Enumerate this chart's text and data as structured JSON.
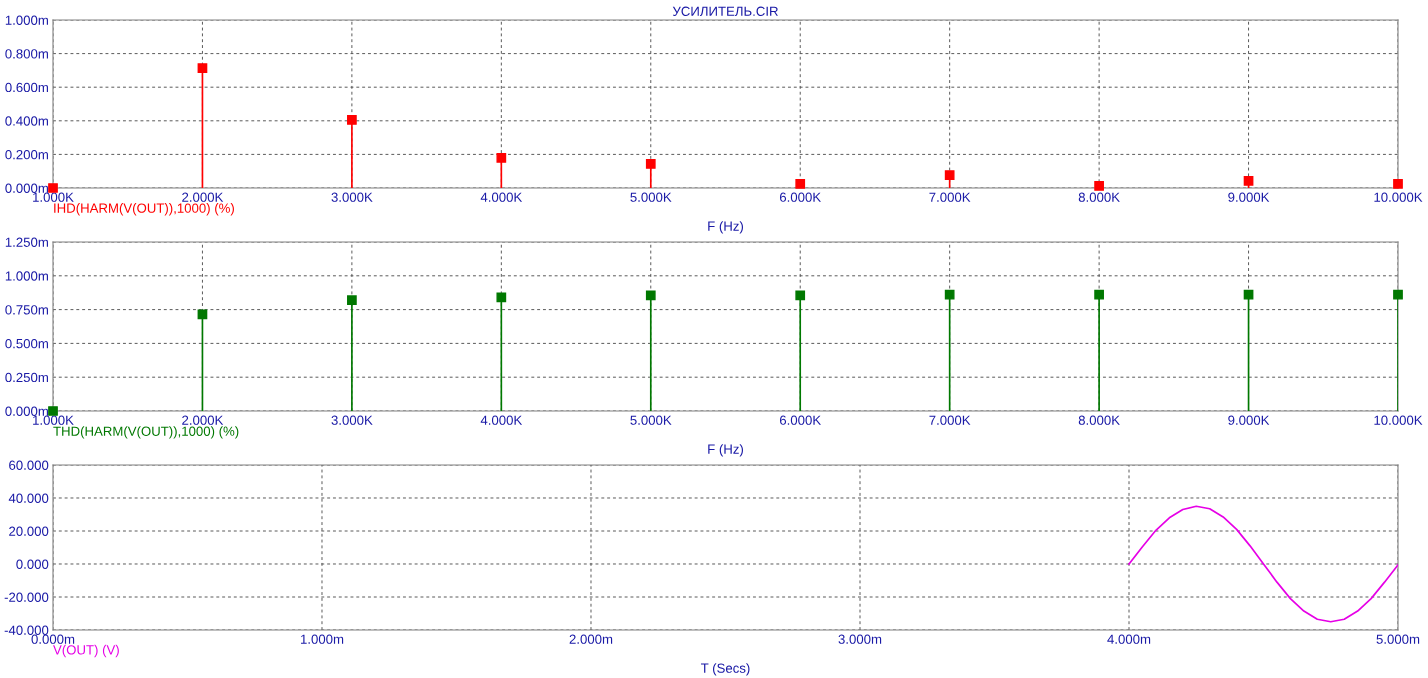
{
  "chart_data": [
    {
      "type": "lollipop",
      "title": "УСИЛИТЕЛЬ.CIR",
      "xlabel": "F (Hz)",
      "x": [
        1000,
        2000,
        3000,
        4000,
        5000,
        6000,
        7000,
        8000,
        9000,
        10000
      ],
      "series": [
        {
          "name": "IHD(HARM(V(OUT)),1000) (%)",
          "color": "#ff0000",
          "values": [
            0,
            0.714,
            0.405,
            0.179,
            0.143,
            0.024,
            0.077,
            0.012,
            0.042,
            0.024
          ]
        }
      ],
      "xlim": [
        1000,
        10000
      ],
      "xticks": [
        {
          "value": 1000,
          "label": "1.000K"
        },
        {
          "value": 2000,
          "label": "2.000K"
        },
        {
          "value": 3000,
          "label": "3.000K"
        },
        {
          "value": 4000,
          "label": "4.000K"
        },
        {
          "value": 5000,
          "label": "5.000K"
        },
        {
          "value": 6000,
          "label": "6.000K"
        },
        {
          "value": 7000,
          "label": "7.000K"
        },
        {
          "value": 8000,
          "label": "8.000K"
        },
        {
          "value": 9000,
          "label": "9.000K"
        },
        {
          "value": 10000,
          "label": "10.000K"
        }
      ],
      "ylim": [
        0,
        1
      ],
      "yticks": [
        {
          "value": 0,
          "label": "0.000m"
        },
        {
          "value": 0.2,
          "label": "0.200m"
        },
        {
          "value": 0.4,
          "label": "0.400m"
        },
        {
          "value": 0.6,
          "label": "0.600m"
        },
        {
          "value": 0.8,
          "label": "0.800m"
        },
        {
          "value": 1,
          "label": "1.000m"
        }
      ],
      "grid": true,
      "marker": "square",
      "legend": "bottom left"
    },
    {
      "type": "lollipop",
      "xlabel": "F (Hz)",
      "x": [
        1000,
        2000,
        3000,
        4000,
        5000,
        6000,
        7000,
        8000,
        9000,
        10000
      ],
      "series": [
        {
          "name": "THD(HARM(V(OUT)),1000) (%)",
          "color": "#007800",
          "values": [
            0,
            0.714,
            0.82,
            0.84,
            0.855,
            0.855,
            0.86,
            0.86,
            0.86,
            0.86
          ]
        }
      ],
      "xlim": [
        1000,
        10000
      ],
      "xticks": [
        {
          "value": 1000,
          "label": "1.000K"
        },
        {
          "value": 2000,
          "label": "2.000K"
        },
        {
          "value": 3000,
          "label": "3.000K"
        },
        {
          "value": 4000,
          "label": "4.000K"
        },
        {
          "value": 5000,
          "label": "5.000K"
        },
        {
          "value": 6000,
          "label": "6.000K"
        },
        {
          "value": 7000,
          "label": "7.000K"
        },
        {
          "value": 8000,
          "label": "8.000K"
        },
        {
          "value": 9000,
          "label": "9.000K"
        },
        {
          "value": 10000,
          "label": "10.000K"
        }
      ],
      "ylim": [
        0,
        1.25
      ],
      "yticks": [
        {
          "value": 0,
          "label": "0.000m"
        },
        {
          "value": 0.25,
          "label": "0.250m"
        },
        {
          "value": 0.5,
          "label": "0.500m"
        },
        {
          "value": 0.75,
          "label": "0.750m"
        },
        {
          "value": 1,
          "label": "1.000m"
        },
        {
          "value": 1.25,
          "label": "1.250m"
        }
      ],
      "grid": true,
      "marker": "square",
      "legend": "bottom left"
    },
    {
      "type": "line",
      "xlabel": "T (Secs)",
      "series": [
        {
          "name": "V(OUT) (V)",
          "color": "#e600e6",
          "x": [
            4.0,
            4.05,
            4.1,
            4.15,
            4.2,
            4.25,
            4.3,
            4.35,
            4.4,
            4.45,
            4.5,
            4.55,
            4.6,
            4.65,
            4.7,
            4.75,
            4.8,
            4.85,
            4.9,
            4.95,
            5.0
          ],
          "values": [
            0,
            10.5,
            20.4,
            28,
            33,
            35,
            33.5,
            28.5,
            21,
            11,
            0,
            -11,
            -21,
            -28.5,
            -33.5,
            -35,
            -33.5,
            -28.5,
            -21,
            -11,
            -0.5
          ]
        }
      ],
      "xlim": [
        0,
        5
      ],
      "xticks": [
        {
          "value": 0,
          "label": "0.000m"
        },
        {
          "value": 1,
          "label": "1.000m"
        },
        {
          "value": 2,
          "label": "2.000m"
        },
        {
          "value": 3,
          "label": "3.000m"
        },
        {
          "value": 4,
          "label": "4.000m"
        },
        {
          "value": 5,
          "label": "5.000m"
        }
      ],
      "ylim": [
        -40,
        60
      ],
      "yticks": [
        {
          "value": -40,
          "label": "-40.000"
        },
        {
          "value": -20,
          "label": "-20.000"
        },
        {
          "value": 0,
          "label": "0.000"
        },
        {
          "value": 20,
          "label": "20.000"
        },
        {
          "value": 40,
          "label": "40.000"
        },
        {
          "value": 60,
          "label": "60.000"
        }
      ],
      "grid": true,
      "marker": "none",
      "legend": "bottom left"
    }
  ]
}
